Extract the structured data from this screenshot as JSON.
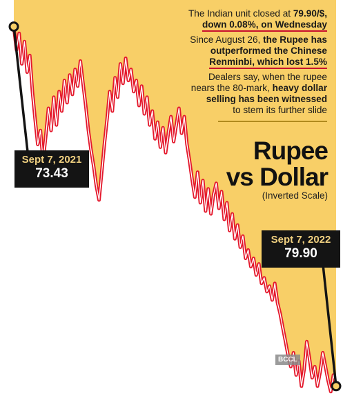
{
  "notes": {
    "n1_text": "The Indian unit closed at ",
    "n1_bold_a": "79.90/$,",
    "n1_bold_b": "down 0.08%, on Wednesday",
    "n2_text": "Since August 26, ",
    "n2_bold_a": "the Rupee has",
    "n2_bold_b": "outperformed the Chinese",
    "n2_bold_c": "Renminbi, which lost 1.5%",
    "n3_line1": "Dealers say, when the rupee",
    "n3_line2": "nears the 80-mark, ",
    "n3_bold_a": "heavy dollar",
    "n3_bold_b": "selling has been witnessed",
    "n3_line4": "to stem its further slide"
  },
  "watermark": "BCCL",
  "colors": {
    "fill": "#f8cf67",
    "line": "#e4182c",
    "line_inner": "#ffffff",
    "callout_bg": "#141414"
  },
  "chart_data": {
    "type": "line",
    "title": "Rupee vs Dollar",
    "subtitle": "(Inverted Scale)",
    "x_start": "Sept 7, 2021",
    "x_end": "Sept 7, 2022",
    "y_scale": "inverted",
    "ylim": [
      73.1,
      80.3
    ],
    "grid": false,
    "legend": "none",
    "series": [
      {
        "values": [
          73.43,
          73.85,
          73.55,
          74.1,
          73.7,
          74.25,
          73.95,
          74.6,
          75.1,
          75.55,
          75.3,
          75.85,
          75.4,
          74.9,
          75.3,
          74.7,
          75.2,
          74.6,
          74.95,
          74.4,
          74.8,
          74.3,
          74.65,
          74.2,
          74.5,
          74.05,
          74.45,
          74.85,
          75.3,
          75.65,
          75.95,
          76.3,
          76.55,
          76.05,
          75.55,
          75.1,
          74.6,
          74.95,
          74.35,
          74.7,
          74.1,
          74.45,
          74.0,
          74.4,
          74.2,
          74.6,
          74.4,
          74.85,
          74.5,
          75.0,
          74.7,
          75.2,
          74.95,
          75.45,
          75.15,
          75.6,
          75.25,
          75.7,
          75.35,
          75.05,
          75.5,
          75.2,
          74.9,
          75.35,
          75.05,
          75.55,
          75.85,
          76.2,
          76.5,
          76.05,
          76.6,
          76.2,
          76.75,
          76.35,
          76.8,
          76.45,
          76.25,
          76.7,
          76.4,
          76.9,
          76.6,
          77.1,
          76.8,
          77.25,
          77.0,
          77.4,
          77.2,
          77.6,
          77.45,
          77.75,
          77.6,
          77.9,
          77.7,
          78.05,
          77.95,
          78.2,
          78.1,
          78.35,
          78.05,
          78.4,
          78.6,
          78.85,
          79.1,
          79.35,
          79.55,
          79.3,
          79.7,
          79.45,
          79.9,
          79.6,
          79.1,
          79.4,
          79.75,
          79.55,
          79.9,
          79.65,
          79.3,
          79.55,
          79.8,
          80.0,
          79.7,
          79.9
        ]
      }
    ],
    "annotations": [
      {
        "label": "Sept 7, 2021",
        "value": "73.43",
        "point": "first"
      },
      {
        "label": "Sept 7, 2022",
        "value": "79.90",
        "point": "last"
      }
    ]
  }
}
